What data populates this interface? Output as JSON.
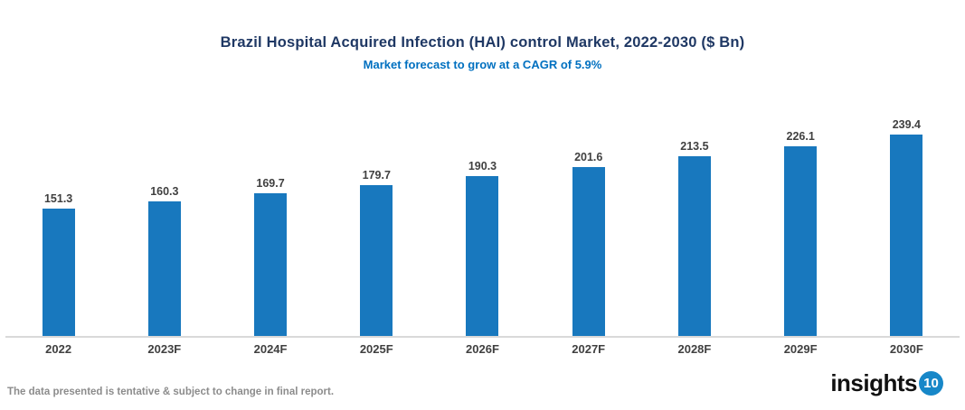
{
  "chart_data": {
    "type": "bar",
    "title": "Brazil Hospital Acquired Infection (HAI) control Market, 2022-2030 ($ Bn)",
    "subtitle": "Market forecast to grow at a CAGR of 5.9%",
    "categories": [
      "2022",
      "2023F",
      "2024F",
      "2025F",
      "2026F",
      "2027F",
      "2028F",
      "2029F",
      "2030F"
    ],
    "values": [
      151.3,
      160.3,
      169.7,
      179.7,
      190.3,
      201.6,
      213.5,
      226.1,
      239.4
    ],
    "xlabel": "",
    "ylabel": "",
    "ylim": [
      0,
      260
    ],
    "y_axis_visible": false,
    "grid": false,
    "legend": "none",
    "data_labels": "above-bars"
  },
  "colors": {
    "bar": "#1878be",
    "title": "#1f3864",
    "subtitle": "#0070c0",
    "data_label": "#404040",
    "axis_label": "#404040",
    "axis_line": "#d9d9d9",
    "footer_note": "#8c8c8c",
    "logo_circle": "#1787c8"
  },
  "footer": {
    "note": "The data presented is tentative & subject to change in final report.",
    "logo_text": "insights",
    "logo_number": "10"
  }
}
